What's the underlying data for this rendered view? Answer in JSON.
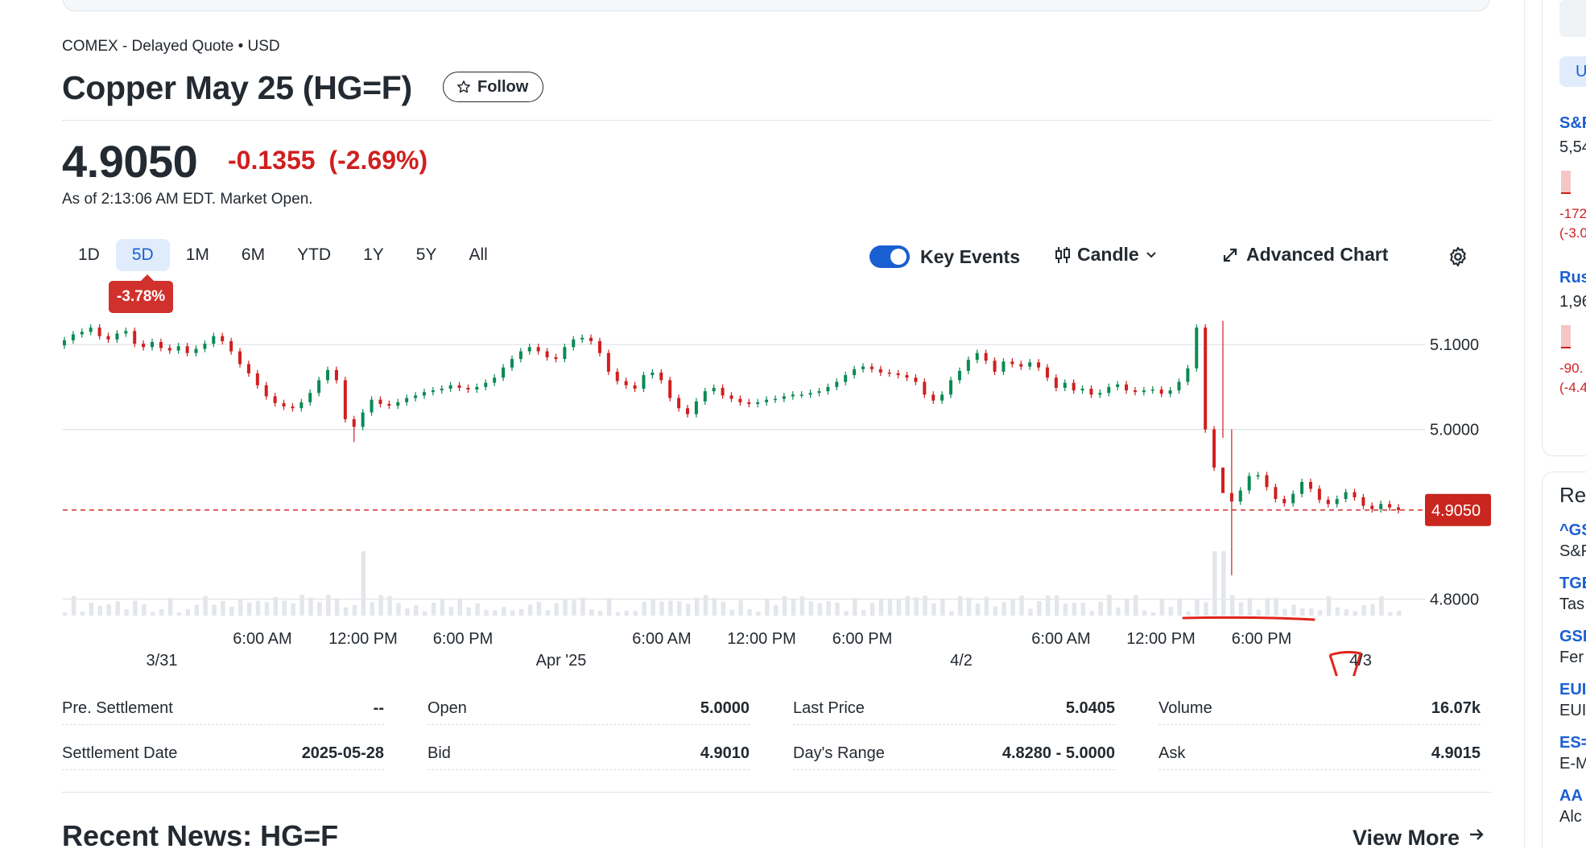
{
  "quote": {
    "exchange": "COMEX - Delayed Quote • USD",
    "title": "Copper May 25 (HG=F)",
    "follow_label": "Follow",
    "price": "4.9050",
    "change": "-0.1355",
    "change_pct": "(-2.69%)",
    "as_of": "As of 2:13:06 AM EDT. Market Open."
  },
  "ranges": [
    "1D",
    "5D",
    "1M",
    "6M",
    "YTD",
    "1Y",
    "5Y",
    "All"
  ],
  "active_range": "5D",
  "range_change": "-3.78%",
  "toolbar": {
    "key_events_label": "Key Events",
    "key_events_on": true,
    "candle_label": "Candle",
    "advanced_label": "Advanced Chart"
  },
  "chart_data": {
    "type": "candlestick",
    "y_ticks": [
      "5.1000",
      "5.0000",
      "4.8000"
    ],
    "y_tick_values": [
      5.1,
      5.0,
      4.8
    ],
    "ylim": [
      4.79,
      5.14
    ],
    "time_ticks": [
      "6:00 AM",
      "12:00 PM",
      "6:00 PM",
      "6:00 AM",
      "12:00 PM",
      "6:00 PM",
      "6:00 AM",
      "12:00 PM",
      "6:00 PM"
    ],
    "date_ticks": [
      "3/31",
      "Apr '25",
      "4/2",
      "4/3"
    ],
    "current_price_label": "4.9050",
    "current_price": 4.905,
    "series_close": [
      5.105,
      5.112,
      5.115,
      5.12,
      5.11,
      5.106,
      5.113,
      5.116,
      5.101,
      5.097,
      5.103,
      5.096,
      5.093,
      5.098,
      5.09,
      5.095,
      5.101,
      5.11,
      5.104,
      5.092,
      5.077,
      5.066,
      5.052,
      5.039,
      5.031,
      5.027,
      5.025,
      5.032,
      5.043,
      5.058,
      5.07,
      5.058,
      5.012,
      5.003,
      5.02,
      5.035,
      5.03,
      5.028,
      5.032,
      5.037,
      5.04,
      5.044,
      5.046,
      5.048,
      5.052,
      5.049,
      5.047,
      5.05,
      5.055,
      5.061,
      5.073,
      5.083,
      5.092,
      5.097,
      5.092,
      5.085,
      5.083,
      5.097,
      5.106,
      5.108,
      5.104,
      5.09,
      5.068,
      5.057,
      5.052,
      5.048,
      5.064,
      5.067,
      5.058,
      5.037,
      5.025,
      5.018,
      5.033,
      5.045,
      5.049,
      5.04,
      5.036,
      5.032,
      5.03,
      5.032,
      5.035,
      5.036,
      5.039,
      5.041,
      5.041,
      5.043,
      5.045,
      5.05,
      5.056,
      5.064,
      5.071,
      5.074,
      5.071,
      5.067,
      5.066,
      5.064,
      5.061,
      5.056,
      5.041,
      5.034,
      5.041,
      5.058,
      5.069,
      5.082,
      5.09,
      5.081,
      5.068,
      5.08,
      5.077,
      5.074,
      5.079,
      5.073,
      5.061,
      5.049,
      5.055,
      5.046,
      5.048,
      5.041,
      5.043,
      5.05,
      5.053,
      5.046,
      5.044,
      5.046,
      5.047,
      5.042,
      5.046,
      5.056,
      5.072,
      5.12,
      5.0,
      4.955,
      4.925,
      4.915,
      4.928,
      4.945,
      4.946,
      4.932,
      4.918,
      4.913,
      4.924,
      4.938,
      4.93,
      4.917,
      4.912,
      4.918,
      4.926,
      4.92,
      4.91,
      4.906,
      4.912,
      4.908,
      4.905
    ]
  },
  "stats": [
    {
      "label": "Pre. Settlement",
      "value": "--"
    },
    {
      "label": "Open",
      "value": "5.0000"
    },
    {
      "label": "Last Price",
      "value": "5.0405"
    },
    {
      "label": "Volume",
      "value": "16.07k"
    },
    {
      "label": "Settlement Date",
      "value": "2025-05-28"
    },
    {
      "label": "Bid",
      "value": "4.9010"
    },
    {
      "label": "Day's Range",
      "value": "4.8280 - 5.0000"
    },
    {
      "label": "Ask",
      "value": "4.9015"
    }
  ],
  "news": {
    "title": "Recent News: HG=F",
    "view_more": "View More"
  },
  "sidebar": {
    "items": [
      {
        "ticker": "S&P",
        "value": "5,54",
        "change": "-172",
        "pct": "(-3.0"
      },
      {
        "ticker": "Rus",
        "value": "1,96",
        "change": "-90.",
        "pct": "(-4.4"
      }
    ],
    "recent_heading": "Rec",
    "recent": [
      {
        "ticker": "^GS",
        "name": "S&P"
      },
      {
        "ticker": "TGE",
        "name": "Tas"
      },
      {
        "ticker": "GSP",
        "name": "Fer"
      },
      {
        "ticker": "EUI",
        "name": "EUI"
      },
      {
        "ticker": "ES=",
        "name": "E-M"
      },
      {
        "ticker": "AA",
        "name": "Alc"
      }
    ]
  },
  "colors": {
    "up": "#0a8a55",
    "down": "#d01f1f",
    "accent": "#1a5fd1"
  }
}
